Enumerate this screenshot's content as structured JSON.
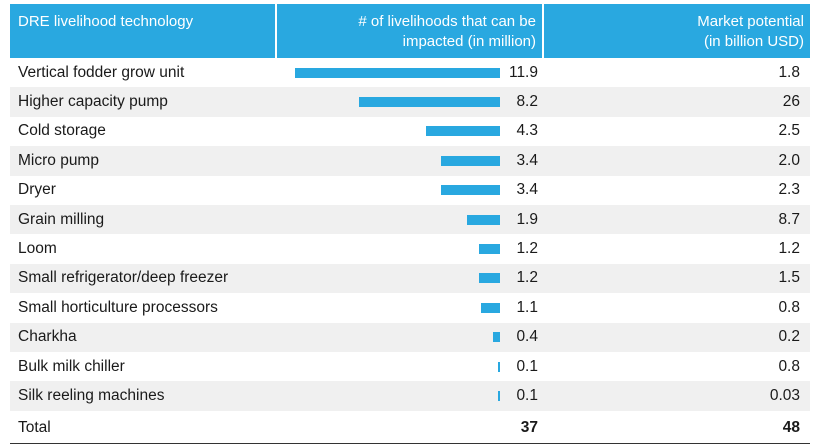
{
  "chart_data": {
    "type": "table",
    "columns": [
      "DRE livelihood technology",
      "# of livelihoods that can be impacted (in million)",
      "Market potential (in billion USD)"
    ],
    "rows": [
      {
        "technology": "Vertical fodder grow unit",
        "livelihoods": "11.9",
        "market": "1.8",
        "value": 11.9
      },
      {
        "technology": "Higher capacity pump",
        "livelihoods": "8.2",
        "market": "26",
        "value": 8.2
      },
      {
        "technology": "Cold storage",
        "livelihoods": "4.3",
        "market": "2.5",
        "value": 4.3
      },
      {
        "technology": "Micro pump",
        "livelihoods": "3.4",
        "market": "2.0",
        "value": 3.4
      },
      {
        "technology": "Dryer",
        "livelihoods": "3.4",
        "market": "2.3",
        "value": 3.4
      },
      {
        "technology": "Grain milling",
        "livelihoods": "1.9",
        "market": "8.7",
        "value": 1.9
      },
      {
        "technology": "Loom",
        "livelihoods": "1.2",
        "market": "1.2",
        "value": 1.2
      },
      {
        "technology": "Small refrigerator/deep freezer",
        "livelihoods": "1.2",
        "market": "1.5",
        "value": 1.2
      },
      {
        "technology": "Small horticulture processors",
        "livelihoods": "1.1",
        "market": "0.8",
        "value": 1.1
      },
      {
        "technology": "Charkha",
        "livelihoods": "0.4",
        "market": "0.2",
        "value": 0.4
      },
      {
        "technology": "Bulk milk chiller",
        "livelihoods": "0.1",
        "market": "0.8",
        "value": 0.1
      },
      {
        "technology": "Silk reeling machines",
        "livelihoods": "0.1",
        "market": "0.03",
        "value": 0.1
      }
    ],
    "total": {
      "label": "Total",
      "livelihoods": "37",
      "market": "48"
    },
    "bar_color": "#29a8e0",
    "header_color": "#29a8e0"
  },
  "header": {
    "col1": "DRE livelihood technology",
    "col2_line1": "# of livelihoods that can be",
    "col2_line2": "impacted (in million)",
    "col3_line1": "Market potential",
    "col3_line2": "(in billion USD)"
  }
}
